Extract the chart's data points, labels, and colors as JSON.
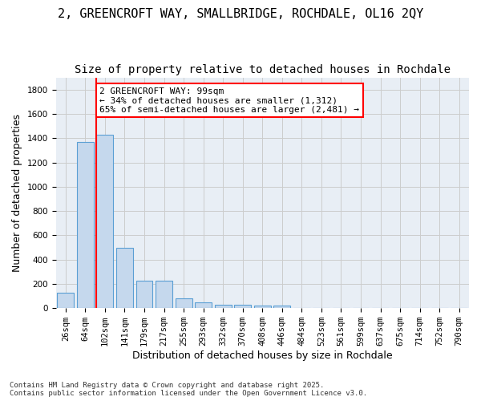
{
  "title_line1": "2, GREENCROFT WAY, SMALLBRIDGE, ROCHDALE, OL16 2QY",
  "title_line2": "Size of property relative to detached houses in Rochdale",
  "xlabel": "Distribution of detached houses by size in Rochdale",
  "ylabel": "Number of detached properties",
  "categories": [
    "26sqm",
    "64sqm",
    "102sqm",
    "141sqm",
    "179sqm",
    "217sqm",
    "255sqm",
    "293sqm",
    "332sqm",
    "370sqm",
    "408sqm",
    "446sqm",
    "484sqm",
    "523sqm",
    "561sqm",
    "599sqm",
    "637sqm",
    "675sqm",
    "714sqm",
    "752sqm",
    "790sqm"
  ],
  "values": [
    130,
    1370,
    1430,
    500,
    225,
    225,
    80,
    47,
    28,
    28,
    20,
    20,
    0,
    0,
    0,
    0,
    0,
    0,
    0,
    0,
    0
  ],
  "bar_color": "#c5d8ed",
  "bar_edge_color": "#5a9fd4",
  "grid_color": "#cccccc",
  "bg_color": "#e8eef5",
  "vline_x": 1.575,
  "vline_color": "red",
  "annotation_text": "2 GREENCROFT WAY: 99sqm\n← 34% of detached houses are smaller (1,312)\n65% of semi-detached houses are larger (2,481) →",
  "annotation_box_color": "white",
  "annotation_edge_color": "red",
  "ylim": [
    0,
    1900
  ],
  "yticks": [
    0,
    200,
    400,
    600,
    800,
    1000,
    1200,
    1400,
    1600,
    1800
  ],
  "footnote": "Contains HM Land Registry data © Crown copyright and database right 2025.\nContains public sector information licensed under the Open Government Licence v3.0.",
  "title_fontsize": 11,
  "subtitle_fontsize": 10,
  "axis_label_fontsize": 9,
  "tick_fontsize": 7.5,
  "annotation_fontsize": 8
}
